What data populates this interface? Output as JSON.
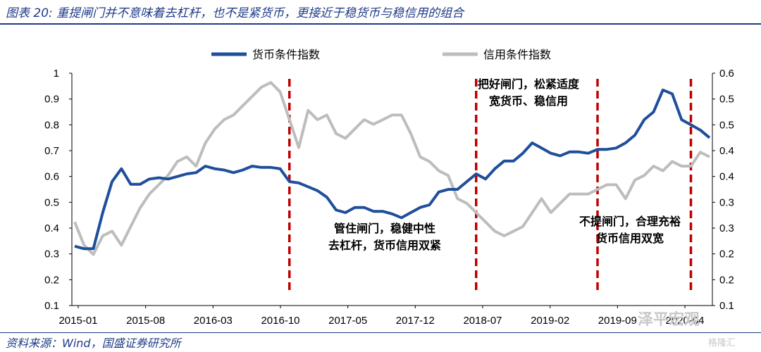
{
  "title": "图表 20:  重提闸门并不意味着去杠杆，也不是紧货币，更接近于稳货币与稳信用的组合",
  "source": "资料来源：Wind，国盛证券研究所",
  "watermark": "泽平宏观",
  "watermark2": "格隆汇",
  "chart_data": {
    "type": "line",
    "x_tick_labels": [
      "2015-01",
      "2015-08",
      "2016-03",
      "2016-10",
      "2017-05",
      "2017-12",
      "2018-07",
      "2019-02",
      "2019-09",
      "2020-04"
    ],
    "ylim_left": [
      0.1,
      1.0
    ],
    "yticks_left": [
      "1",
      "0.9",
      "0.8",
      "0.7",
      "0.6",
      "0.5",
      "0.4",
      "0.3",
      "0.2",
      "0.1"
    ],
    "ylim_right": [
      0.1,
      0.6
    ],
    "yticks_right": [
      "0.6",
      "0.5",
      "0.5",
      "0.4",
      "0.4",
      "0.3",
      "0.3",
      "0.2",
      "0.2",
      "0.1"
    ],
    "legend_position": "top",
    "series": [
      {
        "name": "货币条件指数",
        "axis": "left",
        "color": "#1f4e9c",
        "values": [
          0.33,
          0.32,
          0.32,
          0.46,
          0.58,
          0.63,
          0.57,
          0.57,
          0.59,
          0.595,
          0.59,
          0.6,
          0.61,
          0.615,
          0.64,
          0.63,
          0.625,
          0.615,
          0.625,
          0.64,
          0.635,
          0.635,
          0.63,
          0.58,
          0.575,
          0.56,
          0.545,
          0.52,
          0.47,
          0.46,
          0.48,
          0.48,
          0.465,
          0.465,
          0.455,
          0.44,
          0.46,
          0.48,
          0.49,
          0.54,
          0.55,
          0.55,
          0.58,
          0.61,
          0.59,
          0.63,
          0.66,
          0.66,
          0.69,
          0.73,
          0.71,
          0.69,
          0.68,
          0.695,
          0.695,
          0.69,
          0.705,
          0.705,
          0.71,
          0.73,
          0.76,
          0.82,
          0.85,
          0.935,
          0.92,
          0.82,
          0.8,
          0.78,
          0.75
        ]
      },
      {
        "name": "信用条件指数",
        "axis": "right",
        "color": "#bdbdbd",
        "values": [
          0.28,
          0.23,
          0.21,
          0.25,
          0.26,
          0.23,
          0.27,
          0.31,
          0.34,
          0.36,
          0.38,
          0.41,
          0.42,
          0.4,
          0.45,
          0.48,
          0.5,
          0.51,
          0.53,
          0.55,
          0.57,
          0.58,
          0.56,
          0.5,
          0.44,
          0.52,
          0.5,
          0.51,
          0.47,
          0.46,
          0.48,
          0.5,
          0.49,
          0.5,
          0.51,
          0.51,
          0.47,
          0.42,
          0.41,
          0.39,
          0.38,
          0.33,
          0.32,
          0.3,
          0.28,
          0.26,
          0.25,
          0.26,
          0.27,
          0.3,
          0.33,
          0.3,
          0.32,
          0.34,
          0.34,
          0.34,
          0.35,
          0.36,
          0.36,
          0.33,
          0.37,
          0.38,
          0.4,
          0.39,
          0.41,
          0.4,
          0.4,
          0.43,
          0.42
        ]
      }
    ],
    "vertical_markers": [
      {
        "index": 23,
        "style": "dashed",
        "color": "#c00000"
      },
      {
        "index": 43,
        "style": "dashed",
        "color": "#c00000"
      },
      {
        "index": 56,
        "style": "dashed",
        "color": "#c00000"
      },
      {
        "index": 66,
        "style": "dashed",
        "color": "#c00000"
      }
    ],
    "annotations": [
      {
        "lines": [
          "管住闸门，稳健中性",
          "去杠杆，货币信用双紧"
        ]
      },
      {
        "lines": [
          "把好闸门，松紧适度",
          "宽货币、稳信用"
        ]
      },
      {
        "lines": [
          "不提闸门，合理充裕",
          "货币信用双宽"
        ]
      }
    ]
  }
}
